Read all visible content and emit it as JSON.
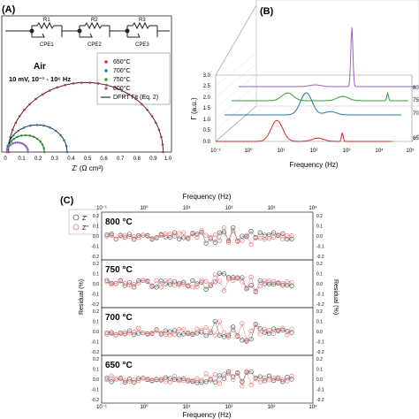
{
  "panel_a": {
    "label": "(A)",
    "circuit": {
      "resistors": [
        "R1",
        "R2",
        "R3"
      ],
      "cpes": [
        "CPE1",
        "CPE2",
        "CPE3"
      ]
    },
    "annotation_line1": "Air",
    "annotation_line2": "10 mV, 10⁻¹ - 10⁶ Hz",
    "xlabel": "Z' (Ω cm²)",
    "xticks": [
      "0",
      "0.1",
      "0.2",
      "0.3",
      "0.4",
      "0.5",
      "0.6",
      "0.7",
      "0.8",
      "0.9",
      "1.0"
    ],
    "legend": [
      {
        "label": "650°C",
        "color": "#d62728",
        "marker": "dot"
      },
      {
        "label": "700°C",
        "color": "#1f77b4",
        "marker": "dot"
      },
      {
        "label": "750°C",
        "color": "#2ca02c",
        "marker": "dot"
      },
      {
        "label": "800°C",
        "color": "#9467bd",
        "marker": "dot"
      },
      {
        "label": "DFRT Fit (Eq. 2)",
        "color": "#000000",
        "marker": "line"
      }
    ]
  },
  "panel_b": {
    "label": "(B)",
    "ylabel": "Γ (a.u.)",
    "xlabel": "Frequency (Hz)",
    "yticks": [
      "0.0",
      "0.5",
      "1.0",
      "1.5",
      "2.0",
      "2.5",
      "3.0"
    ],
    "xticks": [
      "10⁻¹",
      "10⁰",
      "10¹",
      "10²",
      "10³",
      "10⁴",
      "10⁵"
    ],
    "side_labels": [
      "80",
      "75",
      "70",
      "65"
    ]
  },
  "panel_c": {
    "label": "(C)",
    "top_xlabel": "Frequency (Hz)",
    "bottom_xlabel": "Frequency (Hz)",
    "xticks": [
      "10⁻¹",
      "10⁰",
      "10¹",
      "10²",
      "10³",
      "10⁴"
    ],
    "left_ylabel": "Residual (%)",
    "right_ylabel": "Residual (%)",
    "yticks": [
      "0.2",
      "0.1",
      "0.0",
      "-0.1",
      "-0.2"
    ],
    "legend": [
      {
        "label": "Z'",
        "color": "#555555"
      },
      {
        "label": "Z''",
        "color": "#e8797a"
      }
    ],
    "panels": [
      "800 °C",
      "750 °C",
      "700 °C",
      "650 °C"
    ]
  },
  "chart_data": [
    {
      "panel": "A",
      "type": "scatter",
      "xlabel": "Z' (Ω cm²)",
      "xlim": [
        0,
        1.0
      ],
      "series": [
        {
          "name": "650°C",
          "color": "#d62728",
          "arc": [
            0.02,
            0.97
          ]
        },
        {
          "name": "700°C",
          "color": "#1f77b4",
          "arc": [
            0.01,
            0.38
          ]
        },
        {
          "name": "750°C",
          "color": "#2ca02c",
          "arc": [
            0.01,
            0.24
          ]
        },
        {
          "name": "800°C",
          "color": "#9467bd",
          "arc": [
            0.01,
            0.14
          ]
        }
      ]
    },
    {
      "panel": "B",
      "type": "line",
      "ylabel": "Γ (a.u.)",
      "xlabel": "Frequency (Hz)",
      "ylim": [
        0,
        3.0
      ],
      "xscale": "log",
      "xlim": [
        0.1,
        100000
      ],
      "series": [
        {
          "label": "65",
          "color": "#d62728",
          "peaks": [
            [
              12,
              0.95
            ],
            [
              300,
              0.15
            ],
            [
              2000,
              0.4
            ]
          ]
        },
        {
          "label": "70",
          "color": "#1f77b4",
          "peaks": [
            [
              60,
              1.0
            ],
            [
              400,
              0.15
            ]
          ]
        },
        {
          "label": "75",
          "color": "#2ca02c",
          "peaks": [
            [
              8,
              0.35
            ],
            [
              600,
              0.2
            ],
            [
              20000,
              0.35
            ]
          ]
        },
        {
          "label": "80",
          "color": "#9467bd",
          "peaks": [
            [
              40,
              0.08
            ],
            [
              700,
              2.7
            ]
          ]
        }
      ]
    },
    {
      "panel": "C",
      "type": "scatter",
      "xlabel": "Frequency (Hz)",
      "ylabel": "Residual (%)",
      "xscale": "log",
      "xlim": [
        0.1,
        10000
      ],
      "ylim": [
        -0.2,
        0.2
      ],
      "subplots": [
        "800 °C",
        "750 °C",
        "700 °C",
        "650 °C"
      ],
      "series": [
        {
          "name": "Z'",
          "color": "#555555"
        },
        {
          "name": "Z''",
          "color": "#e8797a"
        }
      ]
    }
  ]
}
